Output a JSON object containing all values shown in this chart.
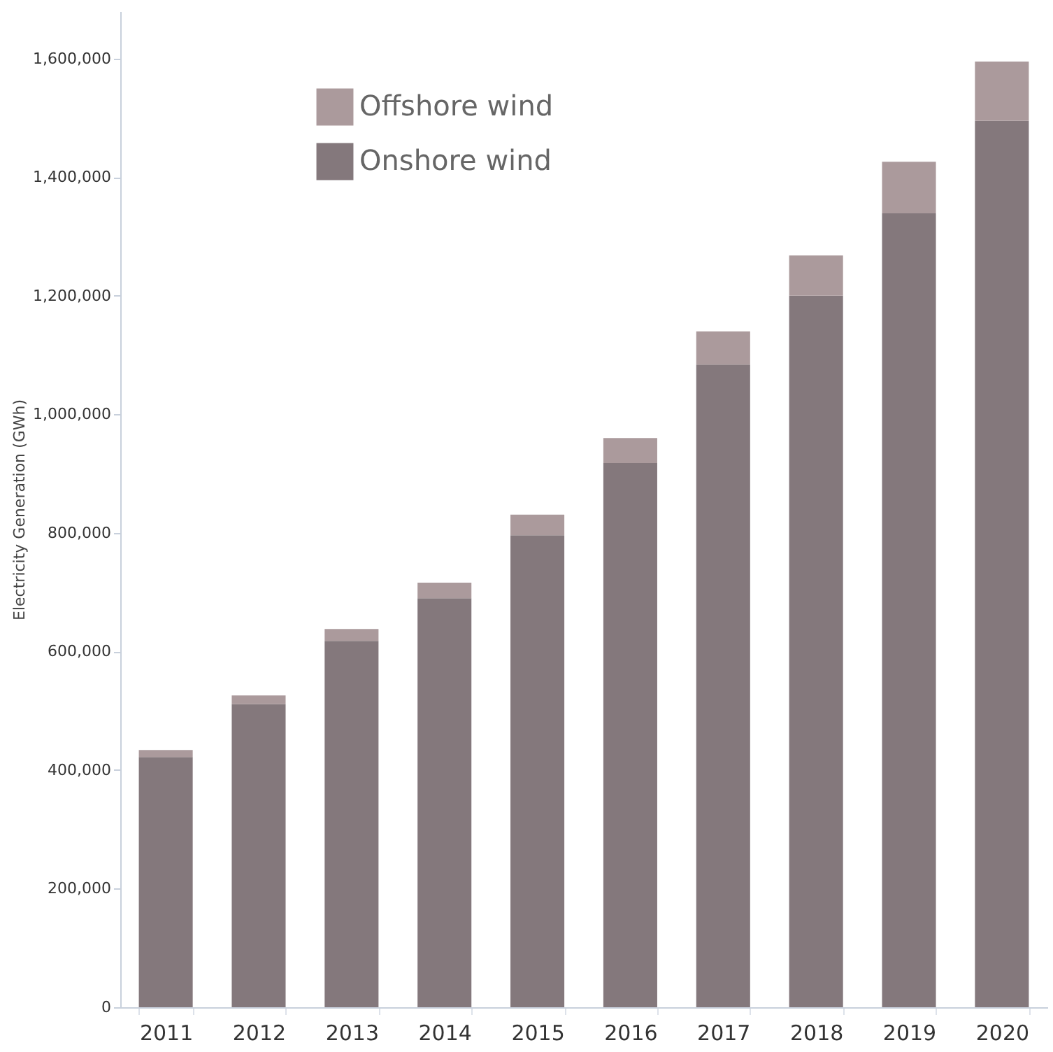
{
  "chart_data": {
    "type": "bar",
    "stacked": true,
    "ylabel": "Electricity Generation (GWh)",
    "categories": [
      "2011",
      "2012",
      "2013",
      "2014",
      "2015",
      "2016",
      "2017",
      "2018",
      "2019",
      "2020"
    ],
    "series": [
      {
        "name": "Onshore wind",
        "color": "#84787c",
        "values": [
          422000,
          511000,
          618000,
          690000,
          796000,
          918000,
          1084000,
          1200000,
          1339000,
          1495000
        ]
      },
      {
        "name": "Offshore wind",
        "color": "#ab9a9c",
        "values": [
          12000,
          15000,
          20000,
          26000,
          35000,
          42000,
          56000,
          68000,
          87000,
          100000
        ]
      }
    ],
    "ylim": [
      0,
      1680000
    ],
    "yticks": [
      0,
      {
        "value": 200000,
        "label": "200,000"
      },
      {
        "value": 400000,
        "label": "400,000"
      },
      {
        "value": 600000,
        "label": "600,000"
      },
      {
        "value": 800000,
        "label": "800,000"
      },
      {
        "value": 1000000,
        "label": "1,000,000"
      },
      {
        "value": 1200000,
        "label": "1,200,000"
      },
      {
        "value": 1400000,
        "label": "1,400,000"
      },
      {
        "value": 1600000,
        "label": "1,600,000"
      }
    ],
    "grid": false,
    "legend": "top left"
  }
}
